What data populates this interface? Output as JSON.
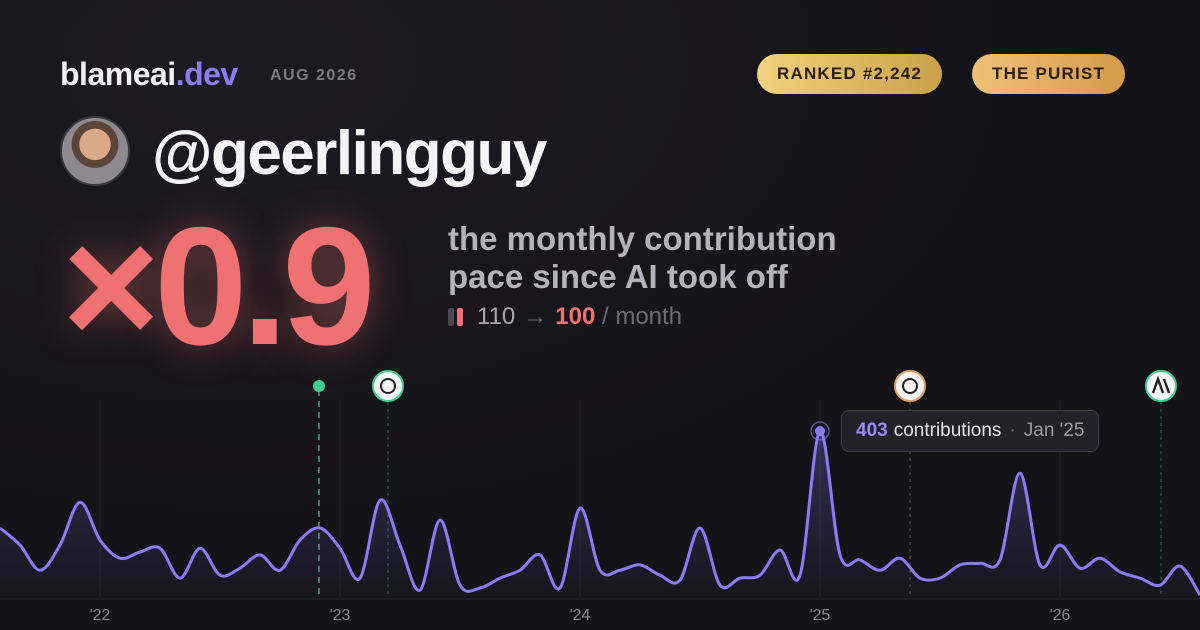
{
  "header": {
    "brand": "blameai",
    "brand_suffix": ".dev",
    "date": "AUG 2026",
    "rank": "RANKED #2,242",
    "persona": "THE PURIST"
  },
  "profile": {
    "handle": "@geerlingguy",
    "multiplier": "×0.9",
    "description": "the monthly contribution pace since AI took off",
    "pace_from": "110",
    "pace_arrow": "→",
    "pace_to": "100",
    "pace_unit": "/ month"
  },
  "tooltip": {
    "count": "403",
    "label": "contributions",
    "separator": "·",
    "date": "Jan '25"
  },
  "chart_data": {
    "type": "line",
    "categories": [
      null,
      null,
      null,
      null,
      null,
      "'22",
      null,
      null,
      null,
      null,
      null,
      null,
      null,
      null,
      null,
      null,
      null,
      "'23",
      null,
      null,
      null,
      null,
      null,
      null,
      null,
      null,
      null,
      null,
      null,
      "'24",
      null,
      null,
      null,
      null,
      null,
      null,
      null,
      null,
      null,
      null,
      null,
      "'25",
      null,
      null,
      null,
      null,
      null,
      null,
      null,
      null,
      null,
      null,
      null,
      "'26",
      null,
      null,
      null,
      null,
      null,
      null,
      null
    ],
    "series": [
      {
        "name": "contributions",
        "color": "#8b7cf6",
        "values": [
          169,
          128,
          67,
          128,
          231,
          140,
          96,
          111,
          120,
          48,
          120,
          55,
          72,
          104,
          67,
          140,
          169,
          120,
          48,
          236,
          128,
          19,
          188,
          31,
          24,
          48,
          67,
          104,
          24,
          217,
          67,
          67,
          80,
          55,
          43,
          169,
          31,
          48,
          55,
          116,
          55,
          403,
          104,
          92,
          67,
          96,
          48,
          48,
          80,
          84,
          92,
          301,
          80,
          128,
          72,
          96,
          63,
          48,
          31,
          77,
          7
        ]
      }
    ],
    "ylim": [
      0,
      420
    ]
  }
}
